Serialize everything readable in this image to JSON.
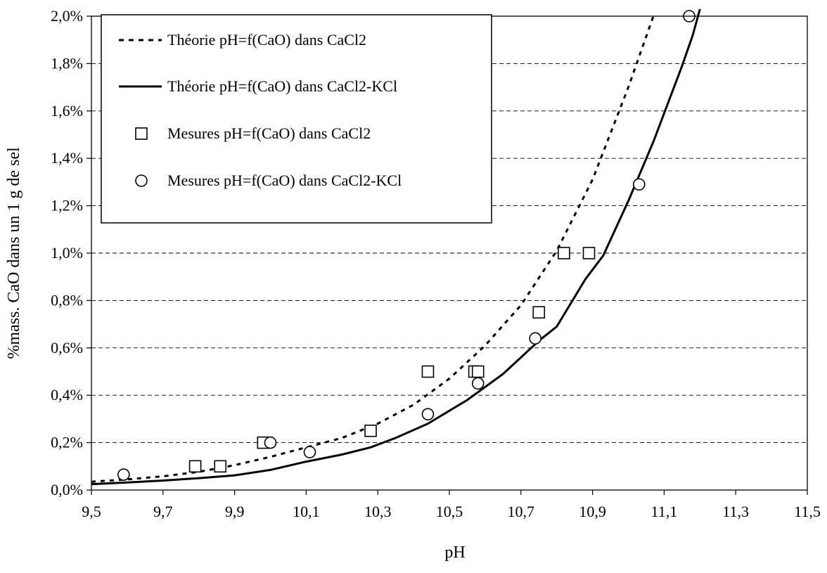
{
  "chart_data": {
    "type": "scatter",
    "title": "",
    "xlabel": "pH",
    "ylabel": "%mass. CaO dans un 1 g de sel",
    "xlim": [
      9.5,
      11.5
    ],
    "ylim": [
      0.0,
      0.02
    ],
    "x_ticks": [
      "9,5",
      "9,7",
      "9,9",
      "10,1",
      "10,3",
      "10,5",
      "10,7",
      "10,9",
      "11,1",
      "11,3",
      "11,5"
    ],
    "y_ticks": [
      "0,0%",
      "0,2%",
      "0,4%",
      "0,6%",
      "0,8%",
      "1,0%",
      "1,2%",
      "1,4%",
      "1,6%",
      "1,8%",
      "2,0%"
    ],
    "grid": "horizontal dashed",
    "legend_position": "top-left",
    "series": [
      {
        "name": "Théorie pH=f(CaO) dans CaCl2",
        "style": "dashed-line",
        "color": "#000000",
        "x": [
          9.5,
          9.6,
          9.7,
          9.8,
          9.9,
          10.0,
          10.1,
          10.2,
          10.3,
          10.4,
          10.5,
          10.6,
          10.7,
          10.8,
          10.9,
          11.0,
          11.07
        ],
        "y": [
          0.00035,
          0.00045,
          0.00058,
          0.00077,
          0.00105,
          0.0014,
          0.0018,
          0.0022,
          0.0028,
          0.0036,
          0.0047,
          0.0061,
          0.0078,
          0.0101,
          0.0131,
          0.017,
          0.02
        ]
      },
      {
        "name": "Théorie pH=f(CaO) dans CaCl2-KCl",
        "style": "solid-line",
        "color": "#000000",
        "x": [
          9.5,
          9.6,
          9.7,
          9.8,
          9.9,
          10.0,
          10.1,
          10.2,
          10.28,
          10.35,
          10.44,
          10.55,
          10.65,
          10.75,
          10.8,
          10.88,
          10.93,
          11.0,
          11.07,
          11.15,
          11.18,
          11.2
        ],
        "y": [
          0.00025,
          0.00032,
          0.0004,
          0.0005,
          0.00062,
          0.00085,
          0.0012,
          0.0015,
          0.0018,
          0.0022,
          0.0028,
          0.0038,
          0.0049,
          0.0063,
          0.0069,
          0.0089,
          0.0099,
          0.0122,
          0.0147,
          0.0179,
          0.0192,
          0.0203
        ]
      },
      {
        "name": "Mesures pH=f(CaO) dans CaCl2",
        "style": "square-marker",
        "color": "#000000",
        "x": [
          9.79,
          9.86,
          9.98,
          10.28,
          10.44,
          10.57,
          10.58,
          10.75,
          10.82,
          10.89
        ],
        "y": [
          0.001,
          0.001,
          0.002,
          0.0025,
          0.005,
          0.005,
          0.005,
          0.0075,
          0.01,
          0.01
        ]
      },
      {
        "name": "Mesures pH=f(CaO) dans CaCl2-KCl",
        "style": "circle-marker",
        "color": "#000000",
        "x": [
          9.59,
          10.0,
          10.11,
          10.44,
          10.58,
          10.74,
          11.03,
          11.17
        ],
        "y": [
          0.00065,
          0.002,
          0.0016,
          0.0032,
          0.0045,
          0.0064,
          0.0129,
          0.02
        ]
      }
    ]
  }
}
